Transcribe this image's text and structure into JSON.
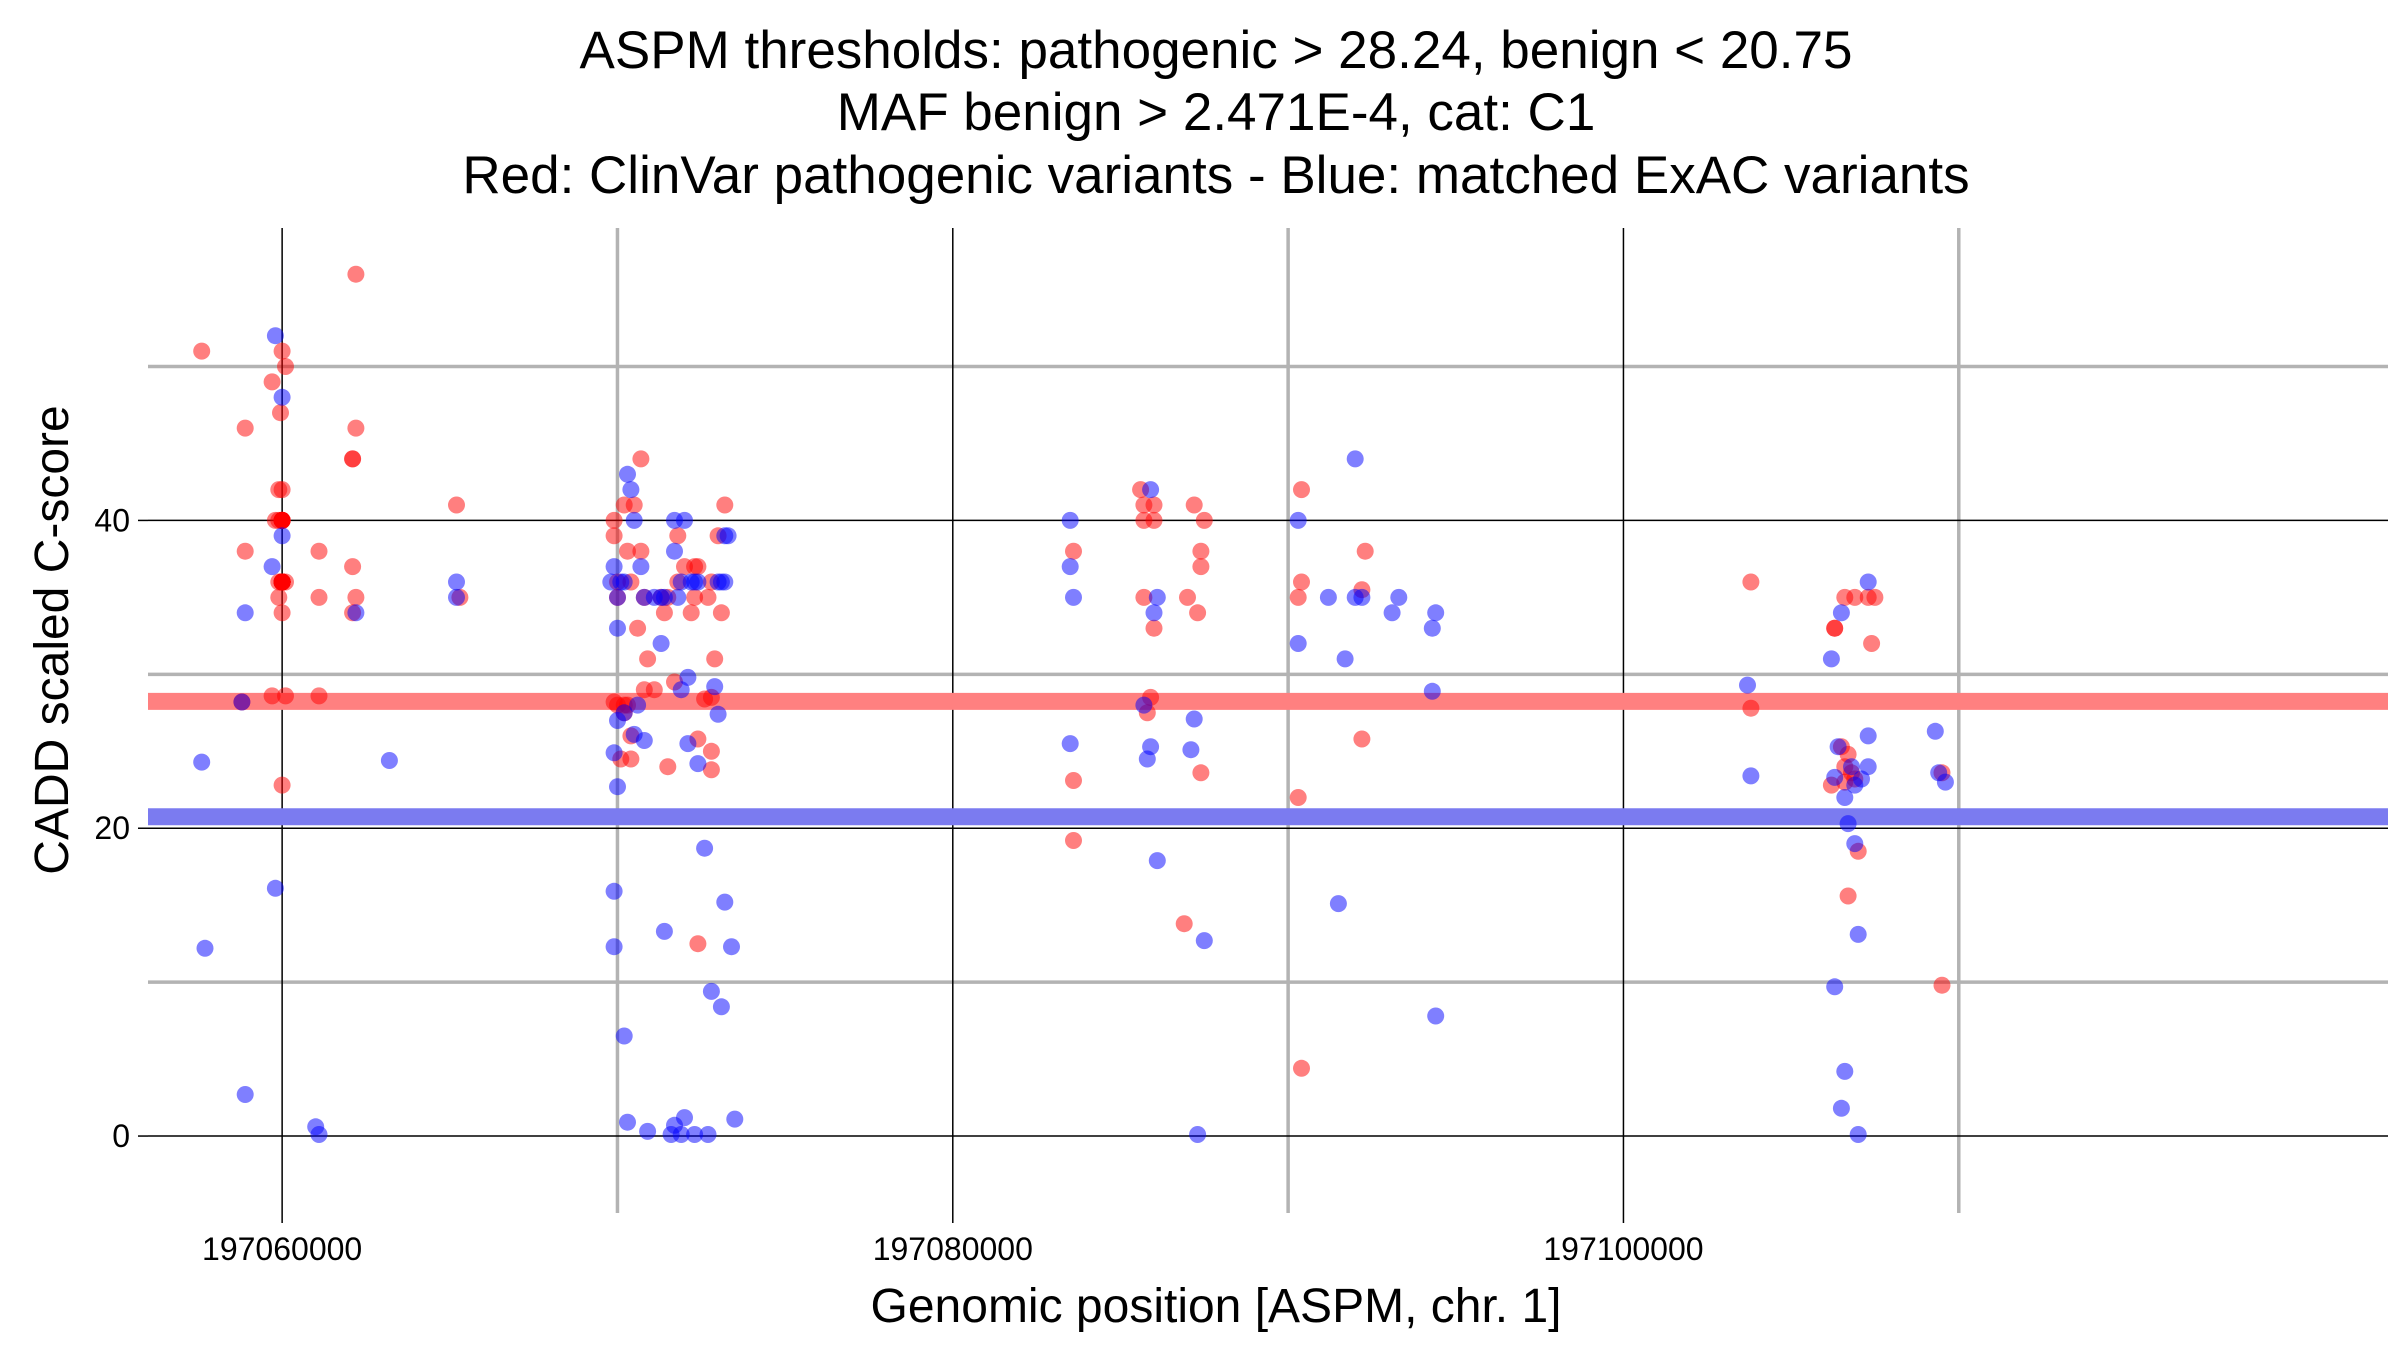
{
  "chart_data": {
    "type": "scatter",
    "title": [
      "ASPM thresholds: pathogenic > 28.24, benign < 20.75",
      "MAF benign > 2.471E-4, cat: C1",
      "Red: ClinVar pathogenic variants - Blue: matched ExAC variants"
    ],
    "xlabel": "Genomic position [ASPM, chr. 1]",
    "ylabel": "CADD scaled C-score",
    "xlim": [
      197056000,
      197122800
    ],
    "ylim": [
      -5,
      59
    ],
    "x_ticks": [
      197060000,
      197080000,
      197100000
    ],
    "x_tick_labels": [
      "197060000",
      "197080000",
      "197100000"
    ],
    "x_minor_grid": [
      197070000,
      197090000,
      197110000
    ],
    "y_ticks": [
      0,
      20,
      40
    ],
    "y_tick_labels": [
      "0",
      "20",
      "40"
    ],
    "y_minor_grid": [
      10,
      30,
      50
    ],
    "grid": true,
    "thresholds": [
      {
        "name": "pathogenic",
        "value": 28.24,
        "color": "#ff8080"
      },
      {
        "name": "benign",
        "value": 20.75,
        "color": "#7b7bf0"
      }
    ],
    "series": [
      {
        "color": "#ff0000",
        "points": [
          [
            197057600,
            51
          ],
          [
            197058900,
            46
          ],
          [
            197058900,
            38
          ],
          [
            197058800,
            28.2
          ],
          [
            197059700,
            49
          ],
          [
            197059700,
            28.6
          ],
          [
            197059800,
            40
          ],
          [
            197059900,
            36
          ],
          [
            197059900,
            42
          ],
          [
            197059900,
            35
          ],
          [
            197059950,
            47
          ],
          [
            197060000,
            34
          ],
          [
            197059900,
            40
          ],
          [
            197060000,
            36
          ],
          [
            197060000,
            36
          ],
          [
            197060000,
            36
          ],
          [
            197060000,
            36
          ],
          [
            197060000,
            36
          ],
          [
            197060000,
            36
          ],
          [
            197060000,
            36
          ],
          [
            197060000,
            40
          ],
          [
            197060000,
            36
          ],
          [
            197060000,
            36
          ],
          [
            197060000,
            36
          ],
          [
            197060000,
            36
          ],
          [
            197060000,
            36
          ],
          [
            197060000,
            36
          ],
          [
            197060000,
            36
          ],
          [
            197060000,
            36
          ],
          [
            197060000,
            36
          ],
          [
            197060000,
            36
          ],
          [
            197060000,
            36
          ],
          [
            197060000,
            36
          ],
          [
            197060000,
            36
          ],
          [
            197060000,
            36
          ],
          [
            197060000,
            36
          ],
          [
            197060000,
            36
          ],
          [
            197060000,
            36
          ],
          [
            197060000,
            36
          ],
          [
            197060000,
            36
          ],
          [
            197060000,
            40
          ],
          [
            197060000,
            40
          ],
          [
            197060000,
            40
          ],
          [
            197060000,
            40
          ],
          [
            197060000,
            40
          ],
          [
            197060000,
            40
          ],
          [
            197060000,
            40
          ],
          [
            197060000,
            40
          ],
          [
            197060000,
            40
          ],
          [
            197060000,
            40
          ],
          [
            197060000,
            51
          ],
          [
            197060100,
            50
          ],
          [
            197060000,
            42
          ],
          [
            197060100,
            36
          ],
          [
            197060100,
            28.6
          ],
          [
            197060000,
            22.8
          ],
          [
            197061100,
            38
          ],
          [
            197061100,
            35
          ],
          [
            197061100,
            28.6
          ],
          [
            197062200,
            56
          ],
          [
            197062200,
            46
          ],
          [
            197062100,
            44
          ],
          [
            197062100,
            44
          ],
          [
            197062100,
            37
          ],
          [
            197062200,
            35
          ],
          [
            197062100,
            34
          ],
          [
            197065200,
            41
          ],
          [
            197065300,
            35
          ],
          [
            197069900,
            40
          ],
          [
            197069900,
            39
          ],
          [
            197070000,
            36
          ],
          [
            197070000,
            35
          ],
          [
            197069900,
            28.2
          ],
          [
            197070000,
            28
          ],
          [
            197070200,
            28
          ],
          [
            197070200,
            27.5
          ],
          [
            197070300,
            28
          ],
          [
            197070400,
            26
          ],
          [
            197070400,
            24.5
          ],
          [
            197070100,
            24.5
          ],
          [
            197070200,
            41
          ],
          [
            197070300,
            38
          ],
          [
            197070400,
            36
          ],
          [
            197070500,
            41
          ],
          [
            197070700,
            44
          ],
          [
            197070700,
            38
          ],
          [
            197070800,
            35
          ],
          [
            197070600,
            33
          ],
          [
            197070800,
            29
          ],
          [
            197070900,
            31
          ],
          [
            197071100,
            29
          ],
          [
            197071300,
            35
          ],
          [
            197071500,
            35
          ],
          [
            197071400,
            34
          ],
          [
            197071500,
            24
          ],
          [
            197071800,
            36
          ],
          [
            197071800,
            39
          ],
          [
            197072000,
            37
          ],
          [
            197072200,
            34
          ],
          [
            197072300,
            35
          ],
          [
            197071700,
            29.5
          ],
          [
            197072300,
            37
          ],
          [
            197072400,
            37
          ],
          [
            197072700,
            35
          ],
          [
            197072400,
            25.8
          ],
          [
            197072800,
            25
          ],
          [
            197072400,
            12.5
          ],
          [
            197072800,
            28.5
          ],
          [
            197072800,
            23.8
          ],
          [
            197072900,
            31
          ],
          [
            197073100,
            34
          ],
          [
            197073200,
            41
          ],
          [
            197072600,
            28.4
          ],
          [
            197073000,
            39
          ],
          [
            197072800,
            36
          ],
          [
            197083600,
            38
          ],
          [
            197083600,
            23.1
          ],
          [
            197083600,
            19.2
          ],
          [
            197085600,
            42
          ],
          [
            197085700,
            40
          ],
          [
            197085700,
            41
          ],
          [
            197085700,
            35
          ],
          [
            197085900,
            28.5
          ],
          [
            197085800,
            27.5
          ],
          [
            197086000,
            40
          ],
          [
            197086000,
            33
          ],
          [
            197086000,
            41
          ],
          [
            197087200,
            41
          ],
          [
            197087400,
            38
          ],
          [
            197087400,
            37
          ],
          [
            197087300,
            34
          ],
          [
            197087500,
            40
          ],
          [
            197087000,
            35
          ],
          [
            197087400,
            23.6
          ],
          [
            197086900,
            13.8
          ],
          [
            197090400,
            42
          ],
          [
            197090400,
            36
          ],
          [
            197090300,
            35
          ],
          [
            197090300,
            22
          ],
          [
            197090400,
            4.4
          ],
          [
            197092300,
            38
          ],
          [
            197092200,
            25.8
          ],
          [
            197092200,
            35.5
          ],
          [
            197103800,
            27.8
          ],
          [
            197103800,
            36
          ],
          [
            197106300,
            33
          ],
          [
            197106300,
            33
          ],
          [
            197106600,
            35
          ],
          [
            197106500,
            25.3
          ],
          [
            197106600,
            24
          ],
          [
            197106700,
            24.8
          ],
          [
            197106900,
            35
          ],
          [
            197106600,
            23
          ],
          [
            197106800,
            23.6
          ],
          [
            197106900,
            23.2
          ],
          [
            197107000,
            18.5
          ],
          [
            197107300,
            35
          ],
          [
            197107400,
            32
          ],
          [
            197107500,
            35
          ],
          [
            197106700,
            15.6
          ],
          [
            197109500,
            23.6
          ],
          [
            197109500,
            9.8
          ],
          [
            197106200,
            22.8
          ]
        ]
      },
      {
        "color": "#0000ff",
        "points": [
          [
            197057600,
            24.3
          ],
          [
            197057700,
            12.2
          ],
          [
            197058900,
            34
          ],
          [
            197058800,
            28.2
          ],
          [
            197058900,
            2.7
          ],
          [
            197059700,
            37
          ],
          [
            197059800,
            52
          ],
          [
            197060000,
            48
          ],
          [
            197060000,
            39
          ],
          [
            197059800,
            16.1
          ],
          [
            197061000,
            0.6
          ],
          [
            197061100,
            0.1
          ],
          [
            197062200,
            34
          ],
          [
            197063200,
            24.4
          ],
          [
            197065200,
            36
          ],
          [
            197065200,
            35
          ],
          [
            197069900,
            37
          ],
          [
            197069800,
            36
          ],
          [
            197070000,
            35
          ],
          [
            197070000,
            33
          ],
          [
            197070100,
            36
          ],
          [
            197070200,
            36
          ],
          [
            197069900,
            24.9
          ],
          [
            197070000,
            22.7
          ],
          [
            197069900,
            15.9
          ],
          [
            197069900,
            12.3
          ],
          [
            197070200,
            6.5
          ],
          [
            197070300,
            0.9
          ],
          [
            197070000,
            27
          ],
          [
            197070200,
            27.5
          ],
          [
            197070300,
            43
          ],
          [
            197070400,
            42
          ],
          [
            197070500,
            40
          ],
          [
            197070700,
            37
          ],
          [
            197070800,
            35
          ],
          [
            197070600,
            28
          ],
          [
            197070800,
            25.7
          ],
          [
            197070500,
            26.1
          ],
          [
            197071100,
            35
          ],
          [
            197071300,
            35
          ],
          [
            197071300,
            32
          ],
          [
            197071400,
            35
          ],
          [
            197071400,
            13.3
          ],
          [
            197070900,
            0.3
          ],
          [
            197071600,
            0.1
          ],
          [
            197071700,
            0.7
          ],
          [
            197071700,
            40
          ],
          [
            197071700,
            38
          ],
          [
            197072000,
            40
          ],
          [
            197071800,
            35
          ],
          [
            197071900,
            36
          ],
          [
            197072200,
            36
          ],
          [
            197072300,
            36
          ],
          [
            197071900,
            29
          ],
          [
            197072100,
            29.8
          ],
          [
            197072400,
            36
          ],
          [
            197072100,
            25.5
          ],
          [
            197072000,
            1.2
          ],
          [
            197071900,
            0.1
          ],
          [
            197072300,
            0.1
          ],
          [
            197072700,
            0.1
          ],
          [
            197072400,
            24.2
          ],
          [
            197072600,
            18.7
          ],
          [
            197072800,
            9.4
          ],
          [
            197073200,
            39
          ],
          [
            197073300,
            39
          ],
          [
            197073000,
            36
          ],
          [
            197073100,
            36
          ],
          [
            197073200,
            36
          ],
          [
            197072900,
            29.2
          ],
          [
            197073000,
            27.4
          ],
          [
            197073200,
            15.2
          ],
          [
            197073100,
            8.4
          ],
          [
            197073400,
            12.3
          ],
          [
            197073500,
            1.1
          ],
          [
            197083500,
            40
          ],
          [
            197083500,
            37
          ],
          [
            197083600,
            35
          ],
          [
            197083500,
            25.5
          ],
          [
            197085700,
            28
          ],
          [
            197085900,
            42
          ],
          [
            197086000,
            34
          ],
          [
            197086100,
            35
          ],
          [
            197085900,
            25.3
          ],
          [
            197085800,
            24.5
          ],
          [
            197086100,
            17.9
          ],
          [
            197087200,
            27.1
          ],
          [
            197087100,
            25.1
          ],
          [
            197087300,
            0.1
          ],
          [
            197087500,
            12.7
          ],
          [
            197090300,
            40
          ],
          [
            197090300,
            32
          ],
          [
            197091200,
            35
          ],
          [
            197091700,
            31
          ],
          [
            197091500,
            15.1
          ],
          [
            197092000,
            44
          ],
          [
            197092000,
            35
          ],
          [
            197092200,
            35
          ],
          [
            197093100,
            34
          ],
          [
            197093300,
            35
          ],
          [
            197094400,
            34
          ],
          [
            197094300,
            33
          ],
          [
            197094300,
            28.9
          ],
          [
            197094400,
            7.8
          ],
          [
            197103700,
            29.3
          ],
          [
            197103800,
            23.4
          ],
          [
            197106200,
            31
          ],
          [
            197106400,
            25.3
          ],
          [
            197106500,
            34
          ],
          [
            197106300,
            23.3
          ],
          [
            197106600,
            22
          ],
          [
            197106700,
            20.3
          ],
          [
            197106900,
            22.8
          ],
          [
            197106800,
            24
          ],
          [
            197107100,
            23.2
          ],
          [
            197106900,
            19
          ],
          [
            197107000,
            13.1
          ],
          [
            197107300,
            36
          ],
          [
            197107300,
            26
          ],
          [
            197107300,
            24
          ],
          [
            197106300,
            9.7
          ],
          [
            197106600,
            4.2
          ],
          [
            197106500,
            1.8
          ],
          [
            197107000,
            0.1
          ],
          [
            197109300,
            26.3
          ],
          [
            197109400,
            23.6
          ],
          [
            197109600,
            23
          ]
        ]
      }
    ]
  }
}
